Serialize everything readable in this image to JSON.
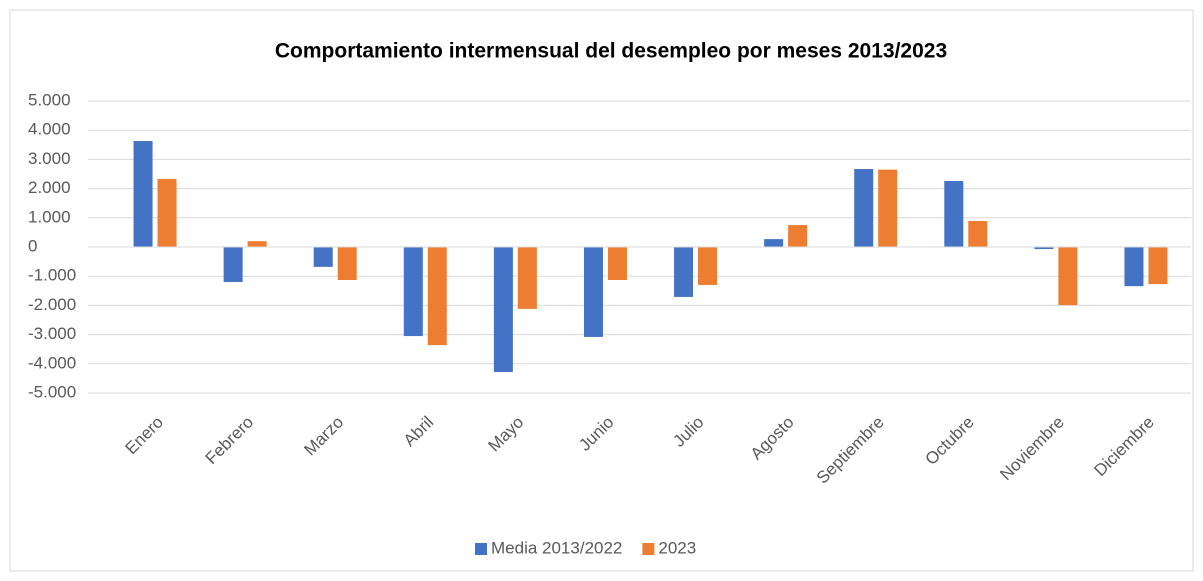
{
  "chart_data": {
    "type": "bar",
    "title": "Comportamiento intermensual del desempleo por meses 2013/2023",
    "categories": [
      "Enero",
      "Febrero",
      "Marzo",
      "Abril",
      "Mayo",
      "Junio",
      "Julio",
      "Agosto",
      "Septiembre",
      "Octubre",
      "Noviembre",
      "Diciembre"
    ],
    "series": [
      {
        "name": "Media 2013/2022",
        "color": "#4472c4",
        "values": [
          3630,
          -1200,
          -680,
          -3050,
          -4280,
          -3080,
          -1710,
          270,
          2670,
          2260,
          -70,
          -1340
        ]
      },
      {
        "name": "2023",
        "color": "#ed7d31",
        "values": [
          2330,
          200,
          -1130,
          -3360,
          -2120,
          -1130,
          -1300,
          750,
          2650,
          890,
          -1990,
          -1270
        ]
      }
    ],
    "ylim": [
      -5000,
      5000
    ],
    "yticks": [
      {
        "value": 5000,
        "label": "5.000"
      },
      {
        "value": 4000,
        "label": "4.000"
      },
      {
        "value": 3000,
        "label": "3.000"
      },
      {
        "value": 2000,
        "label": "2.000"
      },
      {
        "value": 1000,
        "label": "1.000"
      },
      0,
      {
        "value": -1000,
        "label": "-1.000"
      },
      {
        "value": -2000,
        "label": "-2.000"
      },
      {
        "value": -3000,
        "label": "-3.000"
      },
      {
        "value": -4000,
        "label": "-4.000"
      },
      {
        "value": -5000,
        "label": "-5.000"
      }
    ],
    "grid": true,
    "legend": "bottom"
  }
}
